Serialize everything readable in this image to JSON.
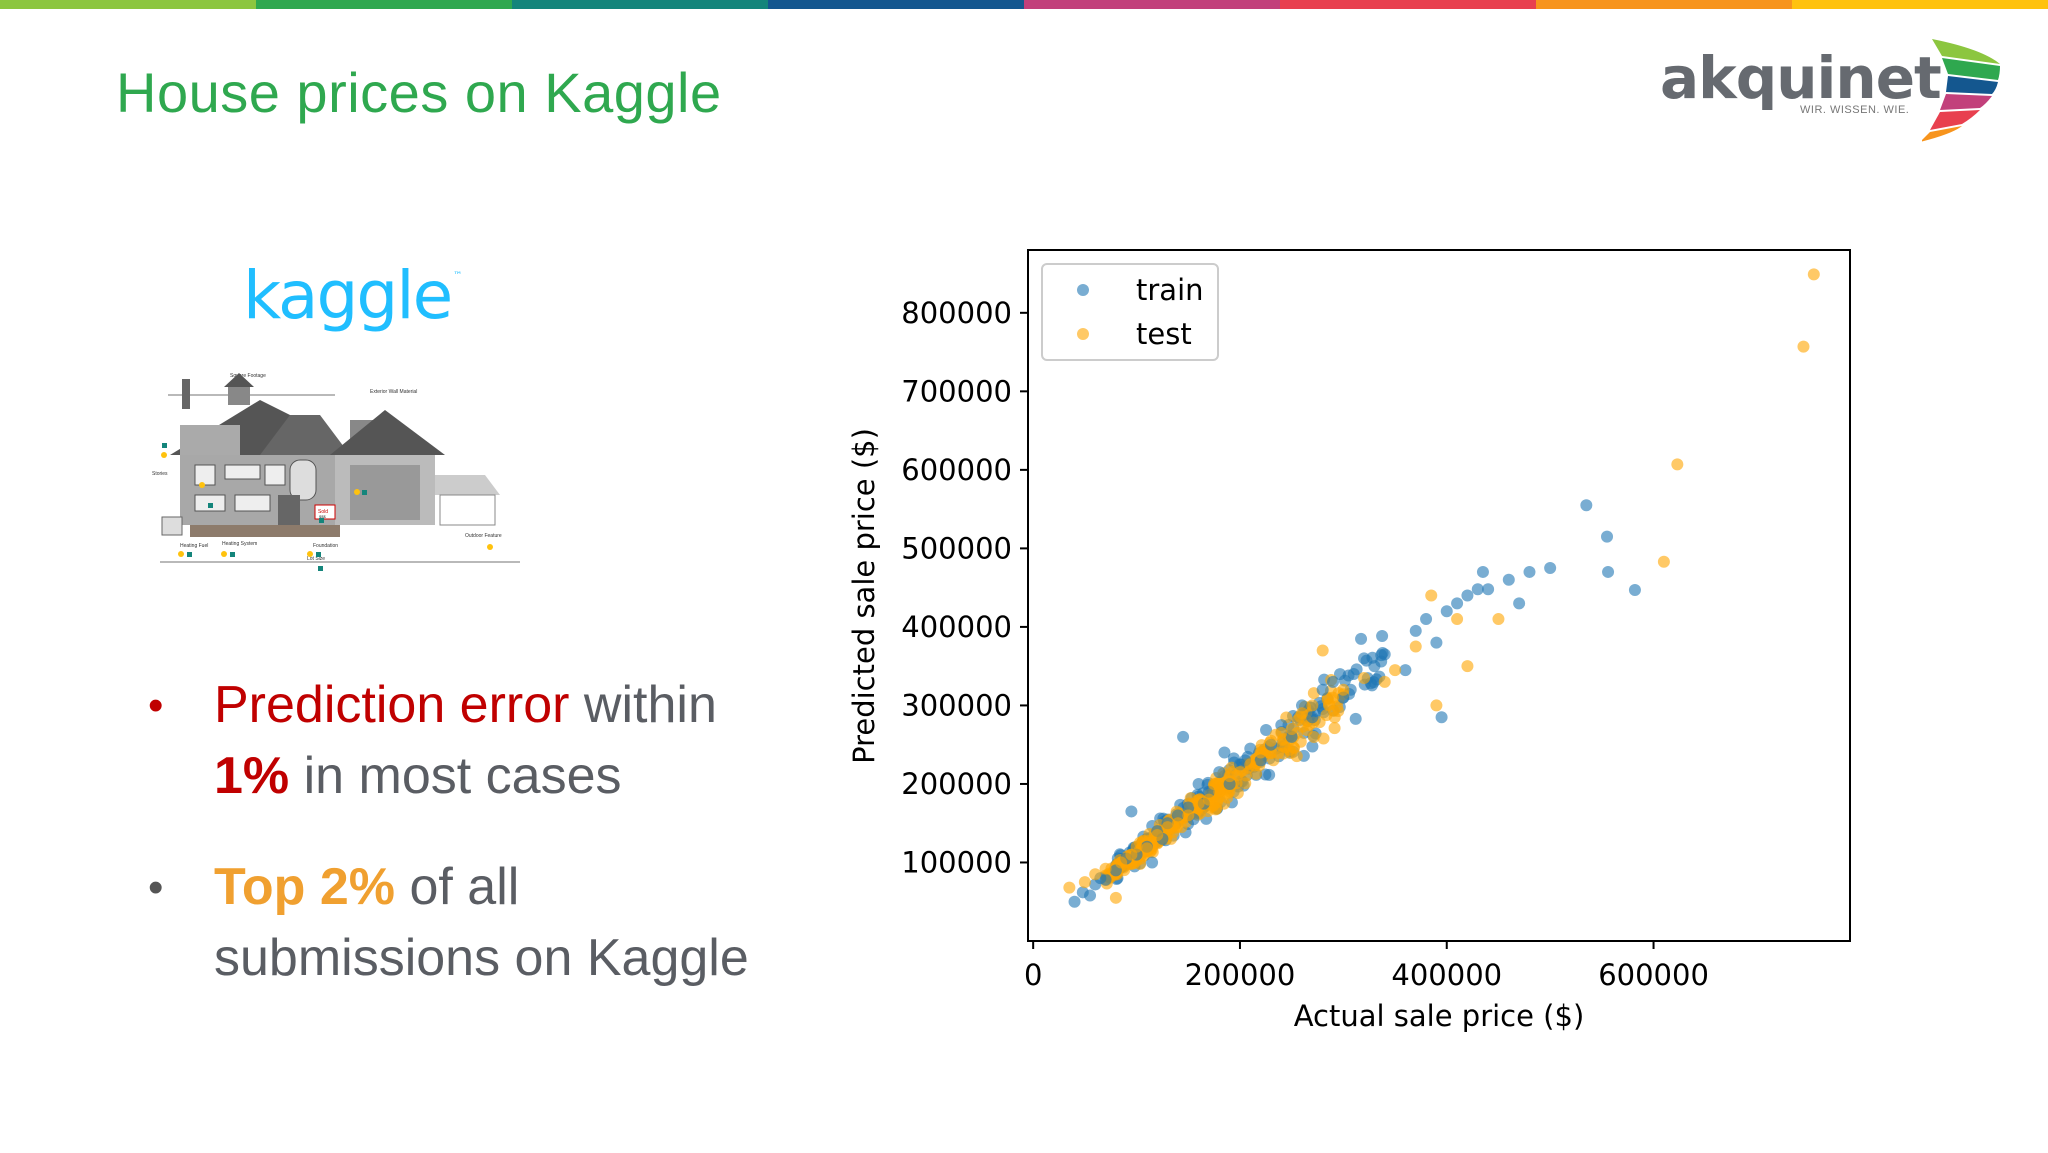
{
  "slide": {
    "title": "House prices on Kaggle",
    "stripe_colors": [
      "#8cc63f",
      "#2fa84f",
      "#14857b",
      "#14578f",
      "#c2407b",
      "#e8404f",
      "#f7941d",
      "#ffc20e"
    ]
  },
  "logo": {
    "name": "akquinet",
    "tagline": "WIR. WISSEN. WIE."
  },
  "kaggle": {
    "wordmark": "kaggle",
    "tm": "™",
    "house_labels": {
      "square_footage": "Square Footage",
      "exterior_wall": "Exterior Wall Material",
      "stories": "Stories",
      "sold": "Sold",
      "sold_price": "$$$",
      "heating_fuel": "Heating Fuel",
      "heating_system": "Heating System",
      "foundation": "Foundation",
      "outdoor_feature": "Outdoor Feature",
      "lot_size": "Lot Size"
    }
  },
  "bullets": [
    {
      "highlight": "Prediction error",
      "rest1": " within",
      "highlight2": "1%",
      "rest2": " in most cases"
    },
    {
      "highlight": "Top 2%",
      "rest1": " of all",
      "line2": "submissions on Kaggle"
    }
  ],
  "chart_data": {
    "type": "scatter",
    "xlabel": "Actual sale price ($)",
    "ylabel": "Predicted sale price ($)",
    "xlim": [
      -5000,
      790000
    ],
    "ylim": [
      0,
      880000
    ],
    "xticks": [
      0,
      200000,
      400000,
      600000
    ],
    "yticks": [
      100000,
      200000,
      300000,
      400000,
      500000,
      600000,
      700000,
      800000
    ],
    "legend_position": "top-left",
    "grid": false,
    "series": [
      {
        "name": "train",
        "color": "#1f77b4",
        "points": [
          [
            40000,
            50000
          ],
          [
            48000,
            62000
          ],
          [
            55000,
            58000
          ],
          [
            60000,
            72000
          ],
          [
            65000,
            80000
          ],
          [
            70000,
            78000
          ],
          [
            80000,
            90000
          ],
          [
            90000,
            105000
          ],
          [
            95000,
            165000
          ],
          [
            100000,
            110000
          ],
          [
            110000,
            120000
          ],
          [
            115000,
            100000
          ],
          [
            120000,
            140000
          ],
          [
            125000,
            130000
          ],
          [
            130000,
            150000
          ],
          [
            140000,
            160000
          ],
          [
            145000,
            260000
          ],
          [
            150000,
            170000
          ],
          [
            155000,
            155000
          ],
          [
            160000,
            200000
          ],
          [
            165000,
            175000
          ],
          [
            170000,
            190000
          ],
          [
            180000,
            215000
          ],
          [
            185000,
            240000
          ],
          [
            190000,
            200000
          ],
          [
            200000,
            225000
          ],
          [
            205000,
            230000
          ],
          [
            210000,
            245000
          ],
          [
            220000,
            230000
          ],
          [
            230000,
            250000
          ],
          [
            240000,
            275000
          ],
          [
            250000,
            260000
          ],
          [
            260000,
            300000
          ],
          [
            270000,
            285000
          ],
          [
            280000,
            320000
          ],
          [
            290000,
            330000
          ],
          [
            300000,
            310000
          ],
          [
            310000,
            340000
          ],
          [
            320000,
            360000
          ],
          [
            330000,
            350000
          ],
          [
            340000,
            365000
          ],
          [
            360000,
            345000
          ],
          [
            370000,
            395000
          ],
          [
            380000,
            410000
          ],
          [
            390000,
            380000
          ],
          [
            395000,
            285000
          ],
          [
            400000,
            420000
          ],
          [
            410000,
            430000
          ],
          [
            420000,
            440000
          ],
          [
            430000,
            448000
          ],
          [
            435000,
            470000
          ],
          [
            440000,
            448000
          ],
          [
            460000,
            460000
          ],
          [
            470000,
            430000
          ],
          [
            480000,
            470000
          ],
          [
            500000,
            475000
          ],
          [
            535000,
            555000
          ],
          [
            555000,
            515000
          ],
          [
            556000,
            470000
          ],
          [
            582000,
            447000
          ]
        ]
      },
      {
        "name": "test",
        "color": "#ffa500",
        "points": [
          [
            35000,
            68000
          ],
          [
            50000,
            75000
          ],
          [
            60000,
            85000
          ],
          [
            70000,
            92000
          ],
          [
            80000,
            55000
          ],
          [
            85000,
            100000
          ],
          [
            95000,
            110000
          ],
          [
            100000,
            120000
          ],
          [
            110000,
            118000
          ],
          [
            120000,
            135000
          ],
          [
            130000,
            145000
          ],
          [
            140000,
            150000
          ],
          [
            150000,
            160000
          ],
          [
            160000,
            175000
          ],
          [
            170000,
            180000
          ],
          [
            175000,
            200000
          ],
          [
            180000,
            190000
          ],
          [
            190000,
            210000
          ],
          [
            200000,
            215000
          ],
          [
            210000,
            225000
          ],
          [
            220000,
            240000
          ],
          [
            230000,
            255000
          ],
          [
            240000,
            265000
          ],
          [
            250000,
            270000
          ],
          [
            260000,
            290000
          ],
          [
            270000,
            300000
          ],
          [
            280000,
            370000
          ],
          [
            290000,
            310000
          ],
          [
            300000,
            320000
          ],
          [
            320000,
            335000
          ],
          [
            340000,
            330000
          ],
          [
            350000,
            345000
          ],
          [
            370000,
            375000
          ],
          [
            385000,
            440000
          ],
          [
            390000,
            300000
          ],
          [
            410000,
            410000
          ],
          [
            420000,
            350000
          ],
          [
            450000,
            410000
          ],
          [
            610000,
            483000
          ],
          [
            623000,
            607000
          ],
          [
            745000,
            757000
          ],
          [
            755000,
            849000
          ]
        ]
      }
    ],
    "cloud": [
      {
        "name": "train",
        "count": 220,
        "from": 80000,
        "to": 340000,
        "slope": 1.02,
        "spread": 0.07,
        "seed": 11
      },
      {
        "name": "test",
        "count": 260,
        "from": 70000,
        "to": 300000,
        "slope": 1.0,
        "spread": 0.06,
        "seed": 29
      }
    ]
  }
}
